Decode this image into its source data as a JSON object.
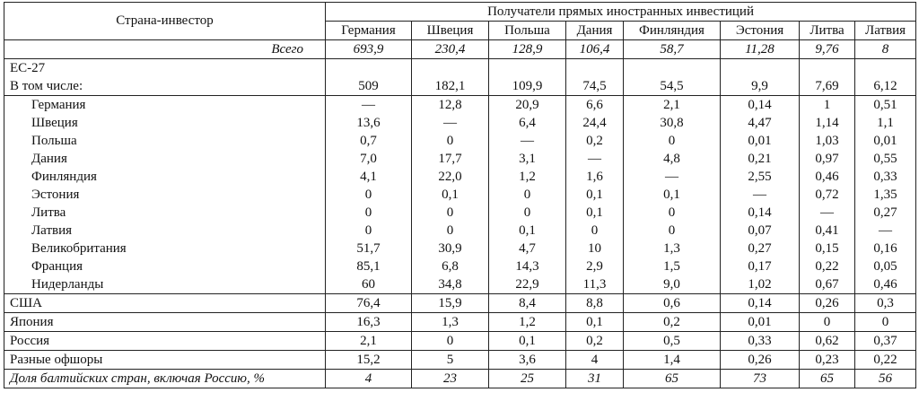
{
  "table": {
    "corner_header": "Страна-инвестор",
    "group_header": "Получатели прямых иностранных инвестиций",
    "columns": [
      "Германия",
      "Швеция",
      "Польша",
      "Дания",
      "Финляндия",
      "Эстония",
      "Литва",
      "Латвия"
    ],
    "total_row": {
      "label": "Всего",
      "values": [
        "693,9",
        "230,4",
        "128,9",
        "106,4",
        "58,7",
        "11,28",
        "9,76",
        "8"
      ]
    },
    "eu_label": "ЕС-27",
    "eu_row": {
      "label": "В том числе:",
      "values": [
        "509",
        "182,1",
        "109,9",
        "74,5",
        "54,5",
        "9,9",
        "7,69",
        "6,12"
      ]
    },
    "eu_members": [
      {
        "label": "Германия",
        "values": [
          "—",
          "12,8",
          "20,9",
          "6,6",
          "2,1",
          "0,14",
          "1",
          "0,51"
        ]
      },
      {
        "label": "Швеция",
        "values": [
          "13,6",
          "—",
          "6,4",
          "24,4",
          "30,8",
          "4,47",
          "1,14",
          "1,1"
        ]
      },
      {
        "label": "Польша",
        "values": [
          "0,7",
          "0",
          "—",
          "0,2",
          "0",
          "0,01",
          "1,03",
          "0,01"
        ]
      },
      {
        "label": "Дания",
        "values": [
          "7,0",
          "17,7",
          "3,1",
          "—",
          "4,8",
          "0,21",
          "0,97",
          "0,55"
        ]
      },
      {
        "label": "Финляндия",
        "values": [
          "4,1",
          "22,0",
          "1,2",
          "1,6",
          "—",
          "2,55",
          "0,46",
          "0,33"
        ]
      },
      {
        "label": "Эстония",
        "values": [
          "0",
          "0,1",
          "0",
          "0,1",
          "0,1",
          "—",
          "0,72",
          "1,35"
        ]
      },
      {
        "label": "Литва",
        "values": [
          "0",
          "0",
          "0",
          "0,1",
          "0",
          "0,14",
          "—",
          "0,27"
        ]
      },
      {
        "label": "Латвия",
        "values": [
          "0",
          "0",
          "0,1",
          "0",
          "0",
          "0,07",
          "0,41",
          "—"
        ]
      },
      {
        "label": "Великобритания",
        "values": [
          "51,7",
          "30,9",
          "4,7",
          "10",
          "1,3",
          "0,27",
          "0,15",
          "0,16"
        ]
      },
      {
        "label": "Франция",
        "values": [
          "85,1",
          "6,8",
          "14,3",
          "2,9",
          "1,5",
          "0,17",
          "0,22",
          "0,05"
        ]
      },
      {
        "label": "Нидерланды",
        "values": [
          "60",
          "34,8",
          "22,9",
          "11,3",
          "9,0",
          "1,02",
          "0,67",
          "0,46"
        ]
      }
    ],
    "other_rows": [
      {
        "label": "США",
        "values": [
          "76,4",
          "15,9",
          "8,4",
          "8,8",
          "0,6",
          "0,14",
          "0,26",
          "0,3"
        ]
      },
      {
        "label": "Япония",
        "values": [
          "16,3",
          "1,3",
          "1,2",
          "0,1",
          "0,2",
          "0,01",
          "0",
          "0"
        ]
      },
      {
        "label": "Россия",
        "values": [
          "2,1",
          "0",
          "0,1",
          "0,2",
          "0,5",
          "0,33",
          "0,62",
          "0,37"
        ]
      },
      {
        "label": "Разные офшоры",
        "values": [
          "15,2",
          "5",
          "3,6",
          "4",
          "1,4",
          "0,26",
          "0,23",
          "0,22"
        ]
      }
    ],
    "share_row": {
      "label": "Доля балтийских стран, включая Россию, %",
      "values": [
        "4",
        "23",
        "25",
        "31",
        "65",
        "73",
        "65",
        "56"
      ]
    }
  }
}
